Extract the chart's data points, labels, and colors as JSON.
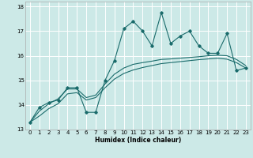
{
  "xlabel": "Humidex (Indice chaleur)",
  "bg_color": "#cce9e7",
  "grid_color": "#ffffff",
  "line_color": "#1a6b6b",
  "xlim": [
    -0.5,
    23.5
  ],
  "ylim": [
    13,
    18.2
  ],
  "xticks": [
    0,
    1,
    2,
    3,
    4,
    5,
    6,
    7,
    8,
    9,
    10,
    11,
    12,
    13,
    14,
    15,
    16,
    17,
    18,
    19,
    20,
    21,
    22,
    23
  ],
  "yticks": [
    13,
    14,
    15,
    16,
    17,
    18
  ],
  "series_jagged": [
    13.3,
    13.9,
    14.1,
    14.2,
    14.7,
    14.7,
    13.7,
    13.7,
    15.0,
    15.8,
    17.1,
    17.4,
    17.0,
    16.4,
    17.75,
    16.5,
    16.8,
    17.0,
    16.4,
    16.1,
    16.1,
    16.9,
    15.4,
    15.5
  ],
  "smooth_upper": [
    13.3,
    13.75,
    14.05,
    14.25,
    14.65,
    14.65,
    14.3,
    14.4,
    14.85,
    15.25,
    15.5,
    15.65,
    15.72,
    15.78,
    15.85,
    15.87,
    15.9,
    15.93,
    15.96,
    16.0,
    16.02,
    16.0,
    15.85,
    15.6
  ],
  "smooth_lower": [
    13.3,
    13.55,
    13.85,
    14.05,
    14.45,
    14.5,
    14.2,
    14.3,
    14.7,
    15.05,
    15.28,
    15.42,
    15.52,
    15.6,
    15.68,
    15.72,
    15.76,
    15.8,
    15.84,
    15.87,
    15.9,
    15.86,
    15.72,
    15.5
  ]
}
